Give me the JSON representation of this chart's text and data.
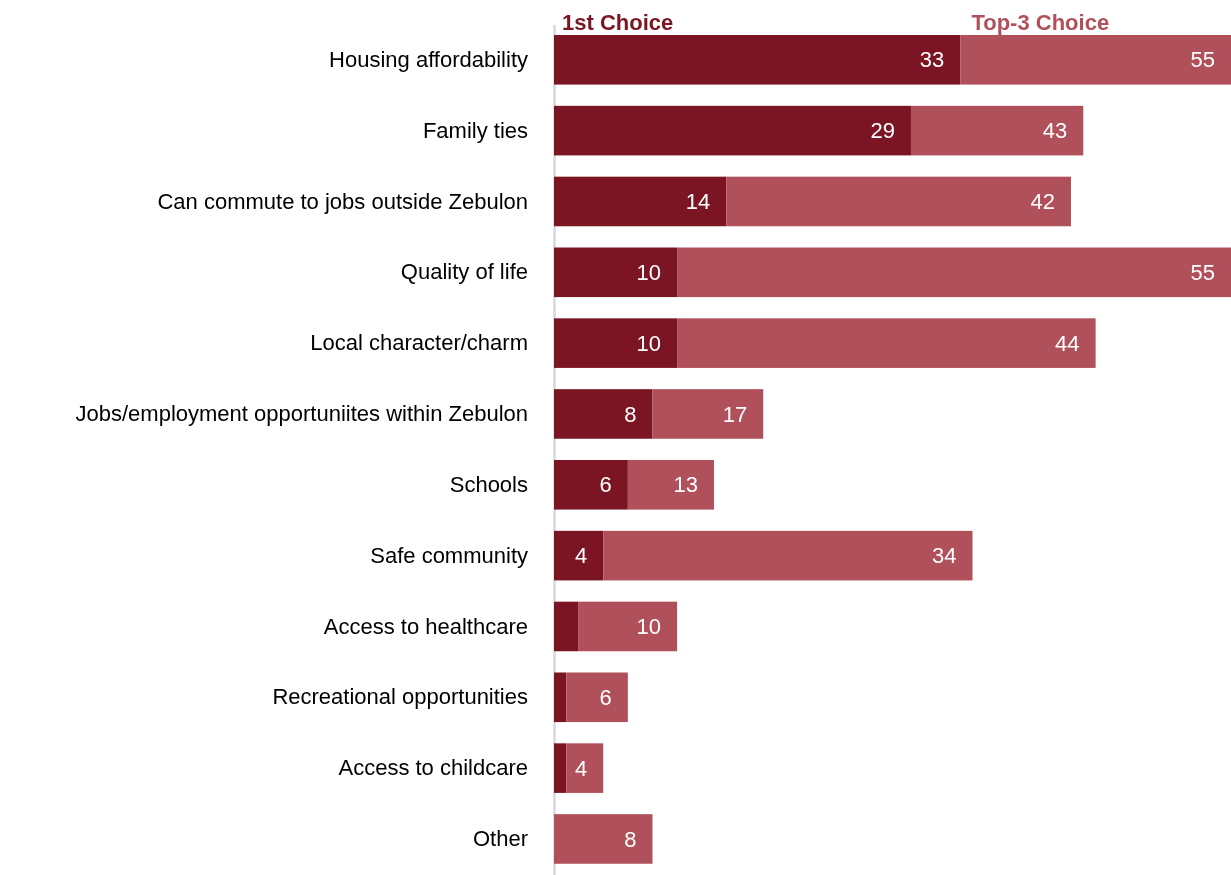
{
  "chart_data": {
    "type": "bar",
    "orientation": "horizontal",
    "stacked": true,
    "categories": [
      "Housing affordability",
      "Family ties",
      "Can commute to jobs outside Zebulon",
      "Quality of life",
      "Local character/charm",
      "Jobs/employment opportuniites within Zebulon",
      "Schools",
      "Safe community",
      "Access to healthcare",
      "Recreational opportunities",
      "Access to childcare",
      "Other"
    ],
    "series": [
      {
        "name": "1st Choice",
        "color": "#7b1523",
        "values": [
          33,
          29,
          14,
          10,
          10,
          8,
          6,
          4,
          2,
          1,
          1,
          null
        ],
        "value_labels": [
          "33",
          "29",
          "14",
          "10",
          "10",
          "8",
          "6",
          "4",
          null,
          null,
          null,
          null
        ]
      },
      {
        "name": "Top-3 Choice",
        "color": "#b0505a",
        "values": [
          22,
          14,
          28,
          45,
          34,
          9,
          7,
          30,
          8,
          5,
          3,
          8
        ]
      }
    ],
    "totals": [
      "55",
      "43",
      "42",
      "55",
      "44",
      "17",
      "13",
      "34",
      "10",
      "6",
      "4",
      "8"
    ],
    "xlim": [
      0,
      55
    ],
    "tick_labels": "y",
    "legend": "top"
  }
}
